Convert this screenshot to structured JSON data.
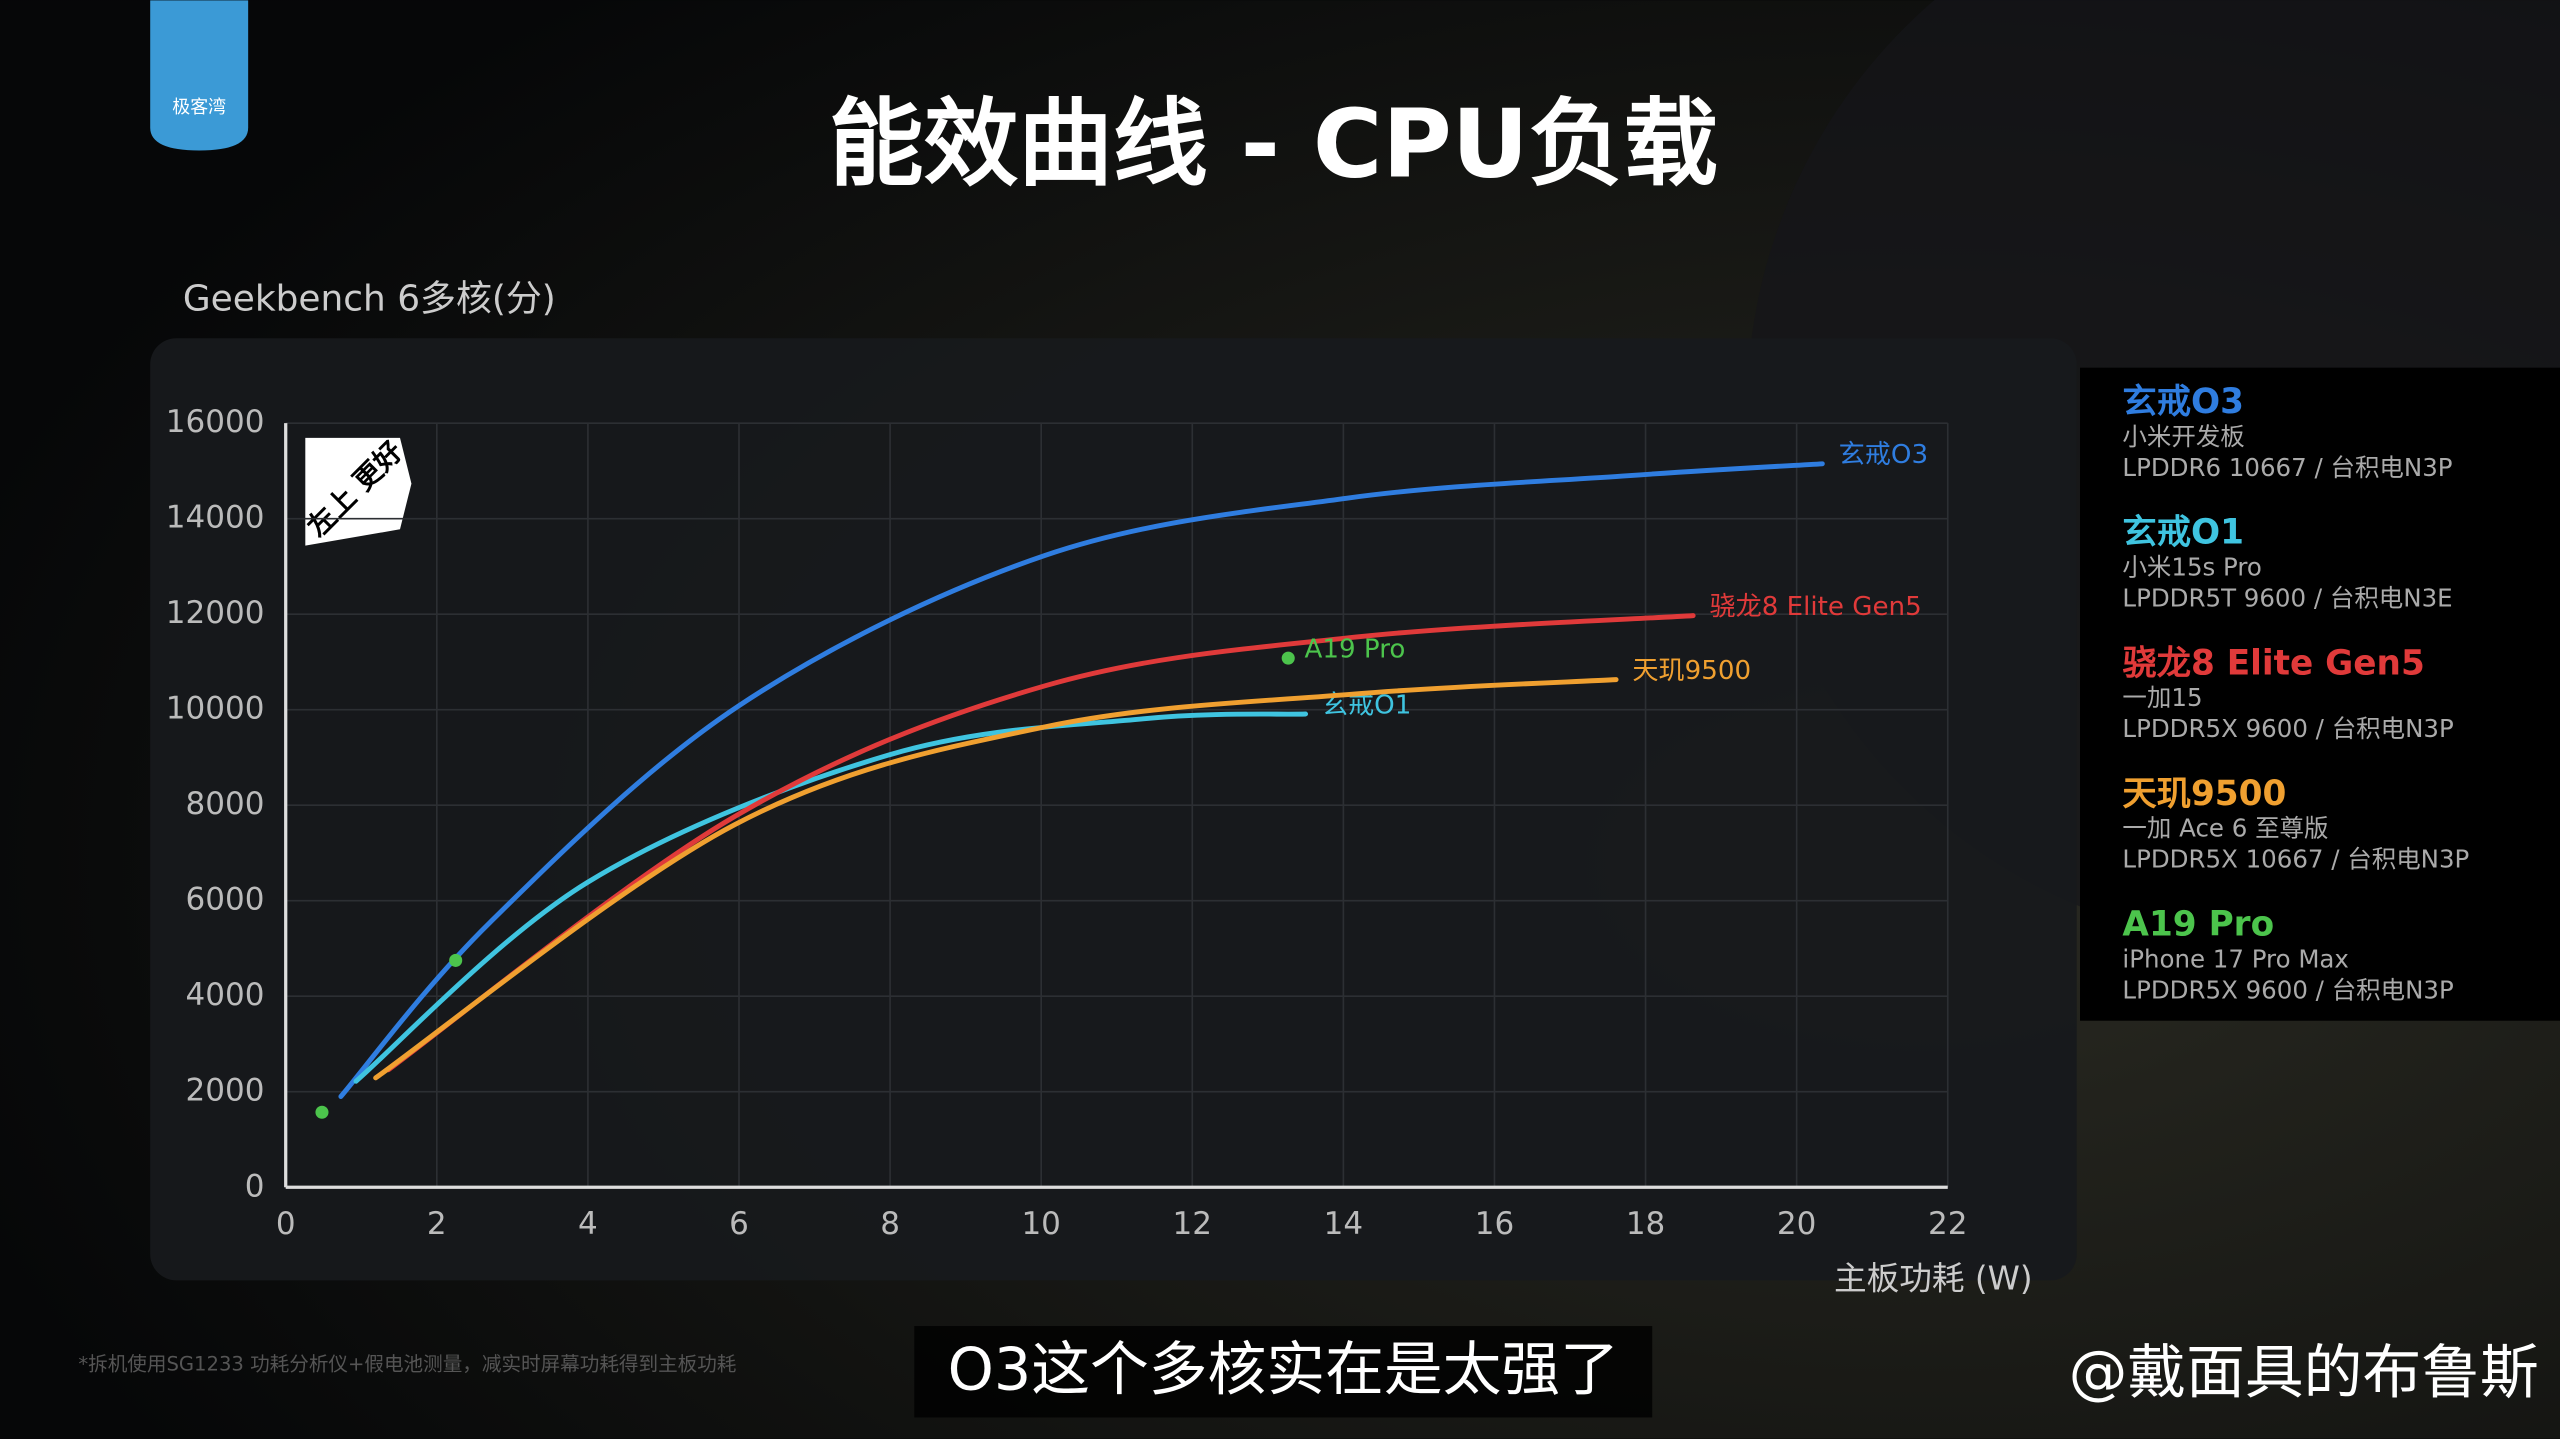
{
  "chart_data": {
    "type": "line",
    "title": "能效曲线 - CPU负载",
    "y_label": "Geekbench 6多核(分)",
    "x_label": "主板功耗 (W)",
    "badge": "左上 更好",
    "xlim": [
      0,
      22
    ],
    "xticks": [
      0,
      2,
      4,
      6,
      8,
      10,
      12,
      14,
      16,
      18,
      20,
      22
    ],
    "ylim": [
      0,
      16000
    ],
    "yticks": [
      0,
      2000,
      4000,
      6000,
      8000,
      10000,
      12000,
      14000,
      16000
    ],
    "grid": true,
    "series": [
      {
        "name": "玄戒O3",
        "color": "#2f7de0",
        "details": [
          "小米开发板",
          "LPDDR6 10667 / 台积电N3P"
        ],
        "x": [
          0.73,
          2.7,
          6.0,
          10.05,
          14.05,
          17.77,
          20.34
        ],
        "values": [
          1900,
          5540,
          10085,
          13230,
          14430,
          14900,
          15150
        ]
      },
      {
        "name": "玄戒O1",
        "color": "#3fc4e0",
        "details": [
          "小米15s Pro",
          "LPDDR5T 9600 / 台积电N3E"
        ],
        "x": [
          0.93,
          4.0,
          8.0,
          11.35,
          13.5
        ],
        "values": [
          2220,
          6390,
          9060,
          9810,
          9910
        ]
      },
      {
        "name": "骁龙8 Elite Gen5",
        "color": "#e03a3a",
        "details": [
          "一加15",
          "LPDDR5X 9600 / 台积电N3P"
        ],
        "x": [
          1.36,
          5.94,
          10.05,
          14.16,
          18.63
        ],
        "values": [
          2460,
          7760,
          10500,
          11520,
          11970
        ]
      },
      {
        "name": "天玑9500",
        "color": "#f0a030",
        "details": [
          "一加 Ace 6 至尊版",
          "LPDDR5X 10667 / 台积电N3P"
        ],
        "x": [
          1.19,
          5.94,
          10.05,
          14.16,
          17.61
        ],
        "values": [
          2290,
          7590,
          9640,
          10330,
          10630
        ]
      },
      {
        "name": "A19 Pro",
        "color": "#4cc44c",
        "type": "scatter",
        "details": [
          "iPhone 17 Pro Max",
          "LPDDR5X 9600 / 台积电N3P"
        ],
        "x": [
          0.48,
          2.25,
          13.27
        ],
        "values": [
          1570,
          4750,
          11080
        ]
      }
    ]
  },
  "logo": "极客湾",
  "footnote": "*拆机使用SG1233 功耗分析仪+假电池测量，减实时屏幕功耗得到主板功耗",
  "caption": "O3这个多核实在是太强了",
  "watermark": "@戴面具的布鲁斯"
}
